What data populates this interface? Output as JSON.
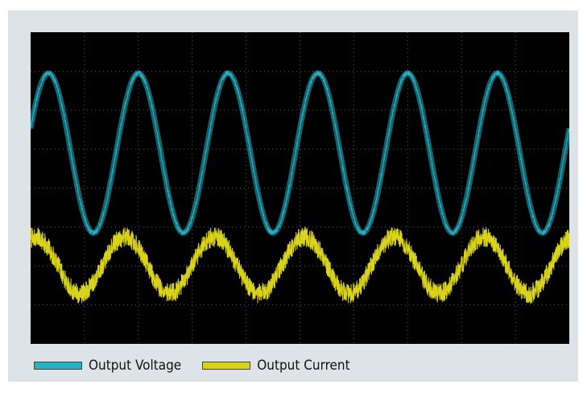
{
  "chart_data": {
    "type": "line",
    "title": "",
    "xlabel": "",
    "ylabel": "",
    "grid": true,
    "grid_divisions": {
      "x": 10,
      "y": 8
    },
    "xlim": [
      0,
      10
    ],
    "ylim": [
      -4,
      4
    ],
    "legend_position": "bottom-left",
    "series": [
      {
        "name": "Output Voltage",
        "color": "#27b2c4",
        "waveform": "sine with stepped (PWM) texture",
        "cycles": 6,
        "phase_start": 0.05,
        "amplitude": 2.05,
        "offset": 0.9,
        "noise": 0.06
      },
      {
        "name": "Output Current",
        "color": "#d9d31b",
        "waveform": "sine with high-frequency ripple",
        "cycles": 6,
        "phase_start": 0.2,
        "amplitude": 0.73,
        "offset": -1.98,
        "noise": 0.26
      }
    ]
  }
}
